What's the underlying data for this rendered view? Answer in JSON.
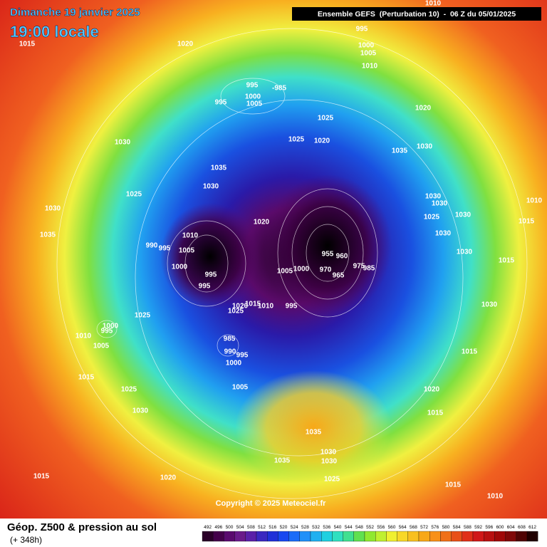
{
  "header": {
    "date_title": "Dimanche 19 janvier 2025",
    "time_title": "19:00 locale",
    "run_info": "Ensemble GEFS  (Perturbation 10)  -  06 Z du 05/01/2025"
  },
  "pressure_labels": [
    "1010",
    "1015",
    "1020",
    "995",
    "1000",
    "1005",
    "1010",
    "-985",
    "995",
    "1000",
    "1005",
    "995",
    "1020",
    "1025",
    "1025",
    "1020",
    "1030",
    "1035",
    "1030",
    "1035",
    "1030",
    "1025",
    "1030",
    "1030",
    "1010",
    "1030",
    "1025",
    "1030",
    "1020",
    "1015",
    "1035",
    "1010",
    "1030",
    "990",
    "995",
    "1005",
    "955",
    "960",
    "1030",
    "1015",
    "975",
    "985",
    "1000",
    "1005",
    "1000",
    "970",
    "965",
    "995",
    "995",
    "995",
    "1010",
    "1015",
    "1020",
    "1025",
    "1030",
    "1025",
    "1000",
    "995",
    "1010",
    "1005",
    "985",
    "990",
    "995",
    "1000",
    "1015",
    "1015",
    "1025",
    "1005",
    "1020",
    "1030",
    "1015",
    "1035",
    "1030",
    "1030",
    "1035",
    "1015",
    "1020",
    "1025",
    "1015",
    "1010"
  ],
  "footer": {
    "title": "Géop. Z500 & pression au sol",
    "subtitle": "(+ 348h)",
    "copyright": "Copyright © 2025 Meteociel.fr"
  },
  "colorbar": {
    "labels": [
      492,
      496,
      500,
      504,
      508,
      512,
      516,
      520,
      524,
      528,
      532,
      536,
      540,
      544,
      548,
      552,
      556,
      560,
      564,
      568,
      572,
      576,
      580,
      584,
      588,
      592,
      596,
      600,
      604,
      608,
      612
    ],
    "colors": [
      "#2a0028",
      "#44004a",
      "#5a0a6e",
      "#6a1a8a",
      "#5a20a8",
      "#3a28c0",
      "#2030d8",
      "#1848f0",
      "#1a6cf8",
      "#2090f8",
      "#20b0f0",
      "#20d0e0",
      "#30e0c0",
      "#40e090",
      "#60e050",
      "#90e830",
      "#c0f030",
      "#f0f030",
      "#f8d828",
      "#f8c020",
      "#f8a818",
      "#f89018",
      "#f07018",
      "#e85018",
      "#e03018",
      "#d01818",
      "#b81010",
      "#a00808",
      "#800808",
      "#500404",
      "#200000"
    ]
  }
}
